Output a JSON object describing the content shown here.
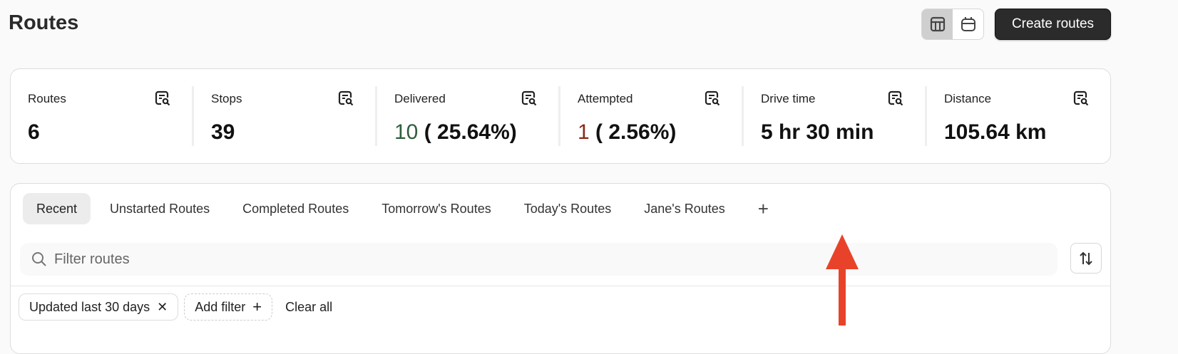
{
  "header": {
    "title": "Routes",
    "create_label": "Create routes",
    "view_toggle": [
      {
        "icon": "table-icon",
        "active": true
      },
      {
        "icon": "calendar-icon",
        "active": false
      }
    ]
  },
  "stats": [
    {
      "label": "Routes",
      "value": "6"
    },
    {
      "label": "Stops",
      "value": "39"
    },
    {
      "label": "Delivered",
      "count": "10",
      "percent": "( 25.64%)",
      "count_color": "#2e5f3c"
    },
    {
      "label": "Attempted",
      "count": "1",
      "percent": "( 2.56%)",
      "count_color": "#8a2a1a"
    },
    {
      "label": "Drive time",
      "value": "5 hr 30 min"
    },
    {
      "label": "Distance",
      "value": "105.64 km"
    }
  ],
  "tabs": [
    {
      "label": "Recent",
      "active": true
    },
    {
      "label": "Unstarted Routes"
    },
    {
      "label": "Completed Routes"
    },
    {
      "label": "Tomorrow's Routes"
    },
    {
      "label": "Today's Routes"
    },
    {
      "label": "Jane's Routes"
    }
  ],
  "search": {
    "placeholder": "Filter routes",
    "value": ""
  },
  "filters": {
    "chips": [
      {
        "label": "Updated last 30 days"
      }
    ],
    "add_label": "Add filter",
    "clear_label": "Clear all"
  },
  "annotation": {
    "color": "#e8432a",
    "points_to": "add-tab-button"
  }
}
